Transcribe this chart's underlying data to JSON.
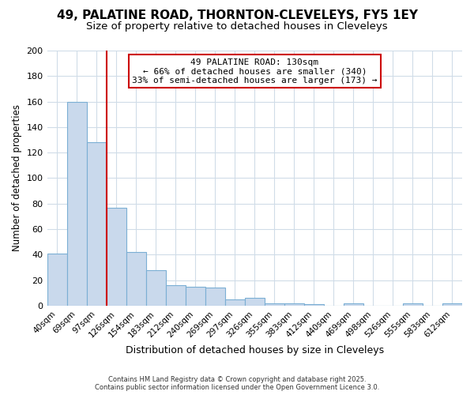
{
  "title": "49, PALATINE ROAD, THORNTON-CLEVELEYS, FY5 1EY",
  "subtitle": "Size of property relative to detached houses in Cleveleys",
  "xlabel": "Distribution of detached houses by size in Cleveleys",
  "ylabel": "Number of detached properties",
  "categories": [
    "40sqm",
    "69sqm",
    "97sqm",
    "126sqm",
    "154sqm",
    "183sqm",
    "212sqm",
    "240sqm",
    "269sqm",
    "297sqm",
    "326sqm",
    "355sqm",
    "383sqm",
    "412sqm",
    "440sqm",
    "469sqm",
    "498sqm",
    "526sqm",
    "555sqm",
    "583sqm",
    "612sqm"
  ],
  "values": [
    41,
    160,
    128,
    77,
    42,
    28,
    16,
    15,
    14,
    5,
    6,
    2,
    2,
    1,
    0,
    2,
    0,
    0,
    2,
    0,
    2
  ],
  "bar_color": "#c9d9ec",
  "bar_edge_color": "#7bafd4",
  "red_line_index": 3,
  "ylim": [
    0,
    200
  ],
  "yticks": [
    0,
    20,
    40,
    60,
    80,
    100,
    120,
    140,
    160,
    180,
    200
  ],
  "annotation_title": "49 PALATINE ROAD: 130sqm",
  "annotation_line1": "← 66% of detached houses are smaller (340)",
  "annotation_line2": "33% of semi-detached houses are larger (173) →",
  "annotation_box_color": "#ffffff",
  "annotation_border_color": "#cc0000",
  "footer1": "Contains HM Land Registry data © Crown copyright and database right 2025.",
  "footer2": "Contains public sector information licensed under the Open Government Licence 3.0.",
  "background_color": "#ffffff",
  "grid_color": "#d0dce8",
  "title_fontsize": 11,
  "subtitle_fontsize": 9.5
}
